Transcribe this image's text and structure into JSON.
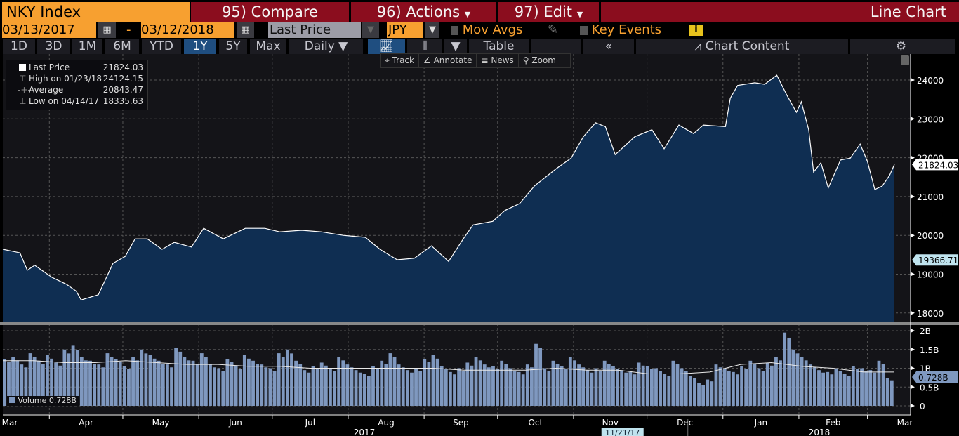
{
  "header": {
    "security": "NKY Index",
    "compare": "95) Compare",
    "actions": "96) Actions",
    "edit": "97) Edit",
    "title": "Line Chart"
  },
  "toolbar": {
    "start_date": "03/13/2017",
    "separator": "-",
    "end_date": "03/12/2018",
    "field": "Last Price",
    "currency": "JPY",
    "mov_avgs": "Mov Avgs",
    "key_events": "Key Events",
    "info": "i"
  },
  "periods": [
    "1D",
    "3D",
    "1M",
    "6M",
    "YTD",
    "1Y",
    "5Y",
    "Max"
  ],
  "active_period": "1Y",
  "frequency": "Daily ▼",
  "table_label": "Table",
  "collapse_label": "«",
  "chart_content_label": "Chart Content",
  "chart_tools": [
    "Track",
    "Annotate",
    "News",
    "Zoom"
  ],
  "legend": {
    "items": [
      {
        "label": "Last Price",
        "value": "21824.03"
      },
      {
        "label": "High on 01/23/18",
        "value": "24124.15"
      },
      {
        "label": "Average",
        "value": "20843.47"
      },
      {
        "label": "Low on 04/14/17",
        "value": "18335.63"
      }
    ],
    "volume_label": "Volume",
    "volume_value": "0.728B"
  },
  "colors": {
    "header_red": "#8b0d1e",
    "orange": "#f7a030",
    "area_fill": "#0f2e52",
    "active_blue": "#1f4e80",
    "volume_bar": "#7f98bf",
    "tag_cyan": "#bfe3ee"
  },
  "chart_data": [
    {
      "type": "area",
      "title": "",
      "ylim": [
        17750,
        24400
      ],
      "y_ticks": [
        "24000",
        "23000",
        "22000",
        "21000",
        "20000",
        "19000",
        "18000"
      ],
      "last_value_tag": "21824.03",
      "marker_tag": "19366.71",
      "grid": true,
      "points": [
        [
          "2017-03-13",
          19642
        ],
        [
          "2017-03-20",
          19550
        ],
        [
          "2017-03-23",
          19100
        ],
        [
          "2017-03-26",
          19230
        ],
        [
          "2017-04-02",
          18920
        ],
        [
          "2017-04-08",
          18740
        ],
        [
          "2017-04-12",
          18560
        ],
        [
          "2017-04-14",
          18336
        ],
        [
          "2017-04-21",
          18470
        ],
        [
          "2017-04-27",
          19280
        ],
        [
          "2017-05-02",
          19460
        ],
        [
          "2017-05-06",
          19910
        ],
        [
          "2017-05-11",
          19910
        ],
        [
          "2017-05-17",
          19640
        ],
        [
          "2017-05-22",
          19820
        ],
        [
          "2017-05-29",
          19700
        ],
        [
          "2017-06-03",
          20180
        ],
        [
          "2017-06-11",
          19910
        ],
        [
          "2017-06-20",
          20180
        ],
        [
          "2017-06-28",
          20180
        ],
        [
          "2017-07-04",
          20090
        ],
        [
          "2017-07-13",
          20130
        ],
        [
          "2017-07-21",
          20090
        ],
        [
          "2017-07-30",
          20000
        ],
        [
          "2017-08-08",
          19950
        ],
        [
          "2017-08-14",
          19640
        ],
        [
          "2017-08-21",
          19370
        ],
        [
          "2017-08-28",
          19410
        ],
        [
          "2017-09-04",
          19730
        ],
        [
          "2017-09-11",
          19330
        ],
        [
          "2017-09-17",
          19910
        ],
        [
          "2017-09-21",
          20270
        ],
        [
          "2017-09-29",
          20360
        ],
        [
          "2017-10-04",
          20640
        ],
        [
          "2017-10-10",
          20820
        ],
        [
          "2017-10-16",
          21270
        ],
        [
          "2017-10-25",
          21720
        ],
        [
          "2017-10-31",
          21990
        ],
        [
          "2017-11-05",
          22540
        ],
        [
          "2017-11-10",
          22900
        ],
        [
          "2017-11-14",
          22800
        ],
        [
          "2017-11-18",
          22080
        ],
        [
          "2017-11-26",
          22540
        ],
        [
          "2017-12-03",
          22720
        ],
        [
          "2017-12-08",
          22230
        ],
        [
          "2017-12-14",
          22840
        ],
        [
          "2017-12-20",
          22620
        ],
        [
          "2017-12-24",
          22840
        ],
        [
          "2018-01-02",
          22800
        ],
        [
          "2018-01-04",
          23530
        ],
        [
          "2018-01-07",
          23860
        ],
        [
          "2018-01-14",
          23930
        ],
        [
          "2018-01-18",
          23890
        ],
        [
          "2018-01-23",
          24124
        ],
        [
          "2018-01-27",
          23620
        ],
        [
          "2018-01-31",
          23170
        ],
        [
          "2018-02-02",
          23440
        ],
        [
          "2018-02-05",
          22720
        ],
        [
          "2018-02-07",
          21630
        ],
        [
          "2018-02-10",
          21870
        ],
        [
          "2018-02-13",
          21220
        ],
        [
          "2018-02-18",
          21940
        ],
        [
          "2018-02-22",
          21990
        ],
        [
          "2018-02-26",
          22350
        ],
        [
          "2018-03-01",
          21900
        ],
        [
          "2018-03-04",
          21180
        ],
        [
          "2018-03-07",
          21270
        ],
        [
          "2018-03-10",
          21540
        ],
        [
          "2018-03-12",
          21824
        ]
      ]
    },
    {
      "type": "bar",
      "name": "Volume",
      "ylim": [
        0,
        2.2
      ],
      "y_ticks": [
        "2B",
        "1.5B",
        "1B",
        "0.5B",
        "0"
      ],
      "last_value_tag": "0.728B",
      "unit": "B",
      "values": [
        1.25,
        1.3,
        1.1,
        1.4,
        1.2,
        1.35,
        1.15,
        1.5,
        1.6,
        1.3,
        1.2,
        1.1,
        1.4,
        1.25,
        1.05,
        1.3,
        1.5,
        1.35,
        1.2,
        1.1,
        1.55,
        1.3,
        1.2,
        1.4,
        1.1,
        1.0,
        1.25,
        1.05,
        1.35,
        1.2,
        1.1,
        1.0,
        1.4,
        1.5,
        1.2,
        0.95,
        1.05,
        1.15,
        1.0,
        1.3,
        1.1,
        0.95,
        0.85,
        1.05,
        1.2,
        1.4,
        1.1,
        0.95,
        1.0,
        1.25,
        1.35,
        1.05,
        0.9,
        1.0,
        1.15,
        1.3,
        1.1,
        1.05,
        1.2,
        1.0,
        0.9,
        1.1,
        1.65,
        1.0,
        1.2,
        1.05,
        1.3,
        1.1,
        0.95,
        1.0,
        1.2,
        1.05,
        0.95,
        0.9,
        1.15,
        1.05,
        1.0,
        0.85,
        1.2,
        1.0,
        0.8,
        0.6,
        0.7,
        1.1,
        1.0,
        0.9,
        1.05,
        1.2,
        1.0,
        1.15,
        1.3,
        1.95,
        1.5,
        1.3,
        1.1,
        0.95,
        0.9,
        1.0,
        0.85,
        1.05,
        1.0,
        0.95,
        1.2,
        0.73
      ],
      "moving_average": [
        1.2,
        1.2,
        1.15,
        1.15,
        1.2,
        1.15,
        1.1,
        1.1,
        1.05,
        1.05,
        1.0,
        1.0,
        1.0,
        1.0,
        1.0,
        0.95,
        0.95,
        0.95,
        1.0,
        0.95,
        0.95,
        0.85,
        0.85,
        0.9,
        1.1,
        1.15,
        1.05,
        1.0,
        0.9,
        0.9
      ]
    },
    {
      "type": "axis",
      "x_ticks": [
        "Mar",
        "Apr",
        "May",
        "Jun",
        "Jul",
        "Aug",
        "Sep",
        "Oct",
        "Nov",
        "Dec",
        "Jan",
        "Feb",
        "Mar"
      ],
      "years": [
        "2017",
        "2018"
      ],
      "cursor_date": "11/21/17"
    }
  ]
}
